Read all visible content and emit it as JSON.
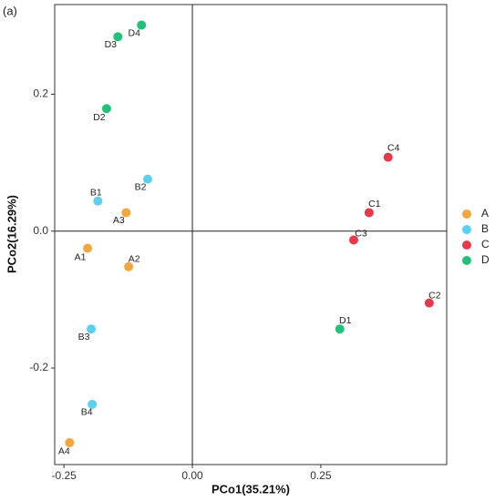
{
  "chart_data": {
    "type": "scatter",
    "panel_label": "(a)",
    "x_label": "PCo1(35.21%)",
    "y_label": "PCo2(16.29%)",
    "xlim": [
      -0.268,
      0.495
    ],
    "ylim": [
      -0.341,
      0.331
    ],
    "xticks": [
      -0.25,
      {
        "value": 0,
        "label": "0.00"
      },
      0.25
    ],
    "yticks": [
      -0.2,
      {
        "value": 0,
        "label": "0.0"
      },
      0.2
    ],
    "zero_lines": true,
    "series": [
      {
        "name": "A",
        "color": "#f0a742",
        "labels": [
          "A1",
          "A2",
          "A3",
          "A4"
        ],
        "x": [
          -0.204,
          -0.124,
          -0.129,
          -0.239
        ],
        "y": [
          -0.025,
          -0.052,
          0.027,
          -0.309
        ]
      },
      {
        "name": "B",
        "color": "#5ad0f0",
        "labels": [
          "B1",
          "B2",
          "B3",
          "B4"
        ],
        "x": [
          -0.184,
          -0.087,
          -0.197,
          -0.195
        ],
        "y": [
          0.044,
          0.076,
          -0.143,
          -0.253
        ]
      },
      {
        "name": "C",
        "color": "#e8394a",
        "labels": [
          "C1",
          "C2",
          "C3",
          "C4"
        ],
        "x": [
          0.344,
          0.461,
          0.314,
          0.381
        ],
        "y": [
          0.027,
          -0.105,
          -0.013,
          0.108
        ]
      },
      {
        "name": "D",
        "color": "#22c07a",
        "labels": [
          "D1",
          "D2",
          "D3",
          "D4"
        ],
        "x": [
          0.287,
          -0.167,
          -0.145,
          -0.099
        ],
        "y": [
          -0.143,
          0.179,
          0.284,
          0.301
        ]
      }
    ]
  }
}
